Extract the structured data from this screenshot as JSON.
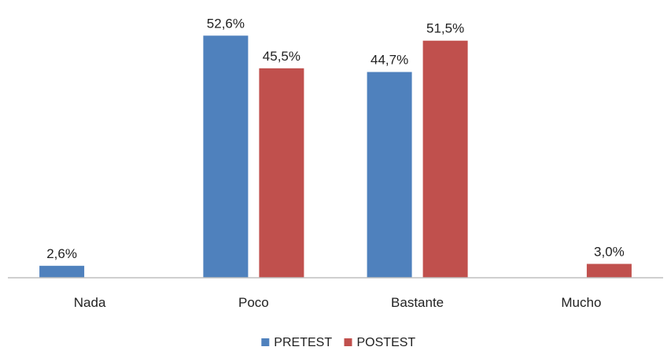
{
  "chart_data": {
    "type": "bar",
    "categories": [
      "Nada",
      "Poco",
      "Bastante",
      "Mucho"
    ],
    "series": [
      {
        "name": "PRETEST",
        "values": [
          2.6,
          52.6,
          44.7,
          null
        ],
        "labels": [
          "2,6%",
          "52,6%",
          "44,7%",
          ""
        ],
        "color": "#4f81bd"
      },
      {
        "name": "POSTEST",
        "values": [
          null,
          45.5,
          51.5,
          3.0
        ],
        "labels": [
          "",
          "45,5%",
          "51,5%",
          "3,0%"
        ],
        "color": "#c0504d"
      }
    ],
    "title": "",
    "xlabel": "",
    "ylabel": "",
    "ylim": [
      0,
      55
    ],
    "grid": false,
    "legend": "bottom"
  }
}
